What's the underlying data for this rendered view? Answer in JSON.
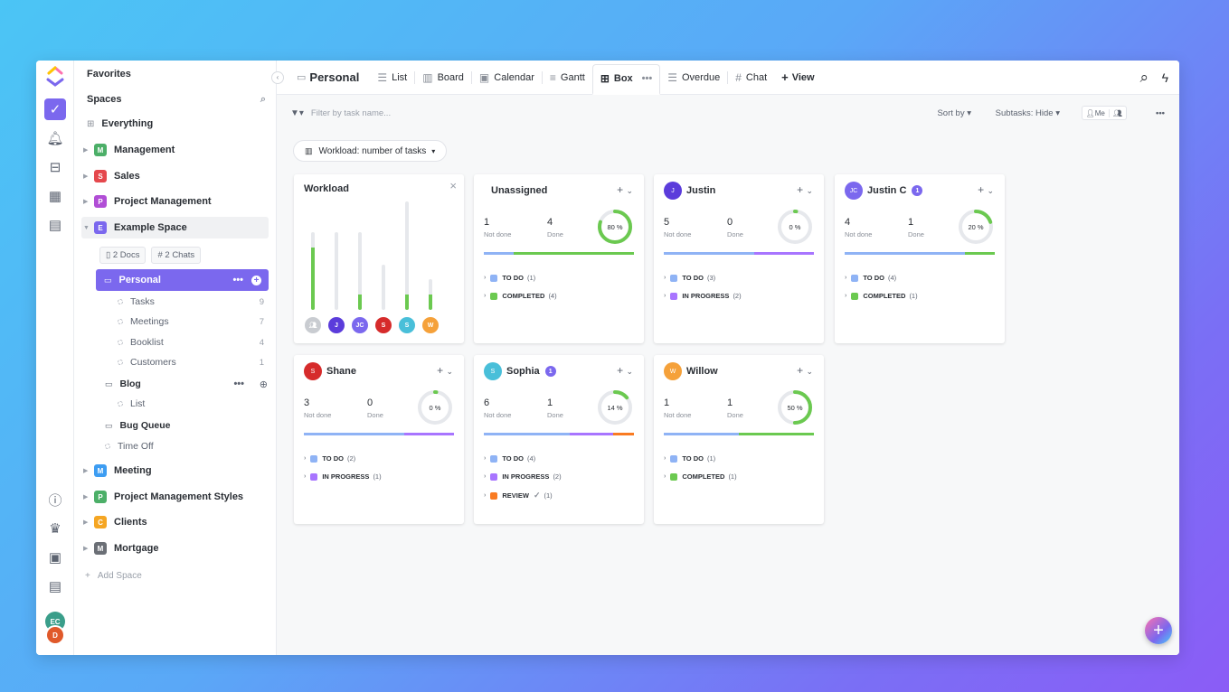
{
  "rail": {
    "avatar_top": "EC",
    "avatar_bottom": "D"
  },
  "sidebar": {
    "favorites": "Favorites",
    "spaces": "Spaces",
    "everything": "Everything",
    "items": [
      {
        "letter": "M",
        "label": "Management",
        "color": "#4caf68"
      },
      {
        "letter": "S",
        "label": "Sales",
        "color": "#e5484d"
      },
      {
        "letter": "P",
        "label": "Project Management",
        "color": "#b14ed6"
      },
      {
        "letter": "E",
        "label": "Example Space",
        "color": "#7b68ee"
      }
    ],
    "docs": "2 Docs",
    "chats": "2 Chats",
    "personal": "Personal",
    "lists": [
      {
        "label": "Tasks",
        "count": "9"
      },
      {
        "label": "Meetings",
        "count": "7"
      },
      {
        "label": "Booklist",
        "count": "4"
      },
      {
        "label": "Customers",
        "count": "1"
      }
    ],
    "blog": "Blog",
    "blog_list": "List",
    "bug_queue": "Bug Queue",
    "time_off": "Time Off",
    "more_spaces": [
      {
        "letter": "M",
        "label": "Meeting",
        "color": "#3d9df2"
      },
      {
        "letter": "P",
        "label": "Project Management Styles",
        "color": "#4caf68"
      },
      {
        "letter": "C",
        "label": "Clients",
        "color": "#f5a623"
      },
      {
        "letter": "M",
        "label": "Mortgage",
        "color": "#6b6f76"
      }
    ],
    "add_space": "Add Space"
  },
  "topbar": {
    "title": "Personal",
    "tabs": [
      "List",
      "Board",
      "Calendar",
      "Gantt",
      "Box",
      "Overdue",
      "Chat"
    ],
    "add_view": "View"
  },
  "filterbar": {
    "placeholder": "Filter by task name...",
    "sort": "Sort by",
    "subtasks": "Subtasks:",
    "subtasks_value": "Hide",
    "me": "Me",
    "workload_btn": "Workload: number of tasks"
  },
  "workload": {
    "title": "Workload",
    "bars": [
      {
        "avatar": "",
        "color": "#c9ccd1",
        "fill": 0.8
      },
      {
        "avatar": "J",
        "color": "#5b3cdb",
        "fill": 0
      },
      {
        "avatar": "JC",
        "color": "#7b68ee",
        "fill": 0.2
      },
      {
        "avatar": "S",
        "color": "#d62b2b",
        "fill": 0
      },
      {
        "avatar": "S",
        "color": "#49bfd9",
        "fill": 0.14
      },
      {
        "avatar": "W",
        "color": "#f5a13a",
        "fill": 0.5
      }
    ],
    "bar_heights": [
      0.72,
      0.72,
      0.72,
      0.42,
      1.0,
      0.28
    ]
  },
  "cards": [
    {
      "name": "Unassigned",
      "avatar": "",
      "avatar_color": "",
      "badge": "",
      "not_done": "1",
      "done": "4",
      "pct": "80 %",
      "pct_val": 0.8,
      "segments": [
        {
          "c": "#8fb3f5",
          "w": 20
        },
        {
          "c": "#6bc950",
          "w": 80
        }
      ],
      "groups": [
        {
          "label": "TO DO",
          "count": "(1)",
          "color": "#8fb3f5"
        },
        {
          "label": "COMPLETED",
          "count": "(4)",
          "color": "#6bc950"
        }
      ]
    },
    {
      "name": "Justin",
      "avatar": "J",
      "avatar_color": "#5b3cdb",
      "badge": "",
      "not_done": "5",
      "done": "0",
      "pct": "0 %",
      "pct_val": 0,
      "segments": [
        {
          "c": "#8fb3f5",
          "w": 60
        },
        {
          "c": "#a875ff",
          "w": 40
        }
      ],
      "groups": [
        {
          "label": "TO DO",
          "count": "(3)",
          "color": "#8fb3f5"
        },
        {
          "label": "IN PROGRESS",
          "count": "(2)",
          "color": "#a875ff"
        }
      ]
    },
    {
      "name": "Justin C",
      "avatar": "JC",
      "avatar_color": "#7b68ee",
      "badge": "1",
      "not_done": "4",
      "done": "1",
      "pct": "20 %",
      "pct_val": 0.2,
      "segments": [
        {
          "c": "#8fb3f5",
          "w": 80
        },
        {
          "c": "#6bc950",
          "w": 20
        }
      ],
      "groups": [
        {
          "label": "TO DO",
          "count": "(4)",
          "color": "#8fb3f5"
        },
        {
          "label": "COMPLETED",
          "count": "(1)",
          "color": "#6bc950"
        }
      ]
    },
    {
      "name": "Shane",
      "avatar": "S",
      "avatar_color": "#d62b2b",
      "badge": "",
      "not_done": "3",
      "done": "0",
      "pct": "0 %",
      "pct_val": 0,
      "segments": [
        {
          "c": "#8fb3f5",
          "w": 67
        },
        {
          "c": "#a875ff",
          "w": 33
        }
      ],
      "groups": [
        {
          "label": "TO DO",
          "count": "(2)",
          "color": "#8fb3f5"
        },
        {
          "label": "IN PROGRESS",
          "count": "(1)",
          "color": "#a875ff"
        }
      ]
    },
    {
      "name": "Sophia",
      "avatar": "S",
      "avatar_color": "#49bfd9",
      "badge": "1",
      "not_done": "6",
      "done": "1",
      "pct": "14 %",
      "pct_val": 0.14,
      "segments": [
        {
          "c": "#8fb3f5",
          "w": 57
        },
        {
          "c": "#a875ff",
          "w": 29
        },
        {
          "c": "#f97b22",
          "w": 14
        }
      ],
      "groups": [
        {
          "label": "TO DO",
          "count": "(4)",
          "color": "#8fb3f5"
        },
        {
          "label": "IN PROGRESS",
          "count": "(2)",
          "color": "#a875ff"
        },
        {
          "label": "REVIEW",
          "count": "(1)",
          "color": "#f97b22",
          "check": true
        }
      ]
    },
    {
      "name": "Willow",
      "avatar": "W",
      "avatar_color": "#f5a13a",
      "badge": "",
      "not_done": "1",
      "done": "1",
      "pct": "50 %",
      "pct_val": 0.5,
      "segments": [
        {
          "c": "#8fb3f5",
          "w": 50
        },
        {
          "c": "#6bc950",
          "w": 50
        }
      ],
      "groups": [
        {
          "label": "TO DO",
          "count": "(1)",
          "color": "#8fb3f5"
        },
        {
          "label": "COMPLETED",
          "count": "(1)",
          "color": "#6bc950"
        }
      ]
    }
  ],
  "labels": {
    "not_done": "Not done",
    "done": "Done"
  }
}
